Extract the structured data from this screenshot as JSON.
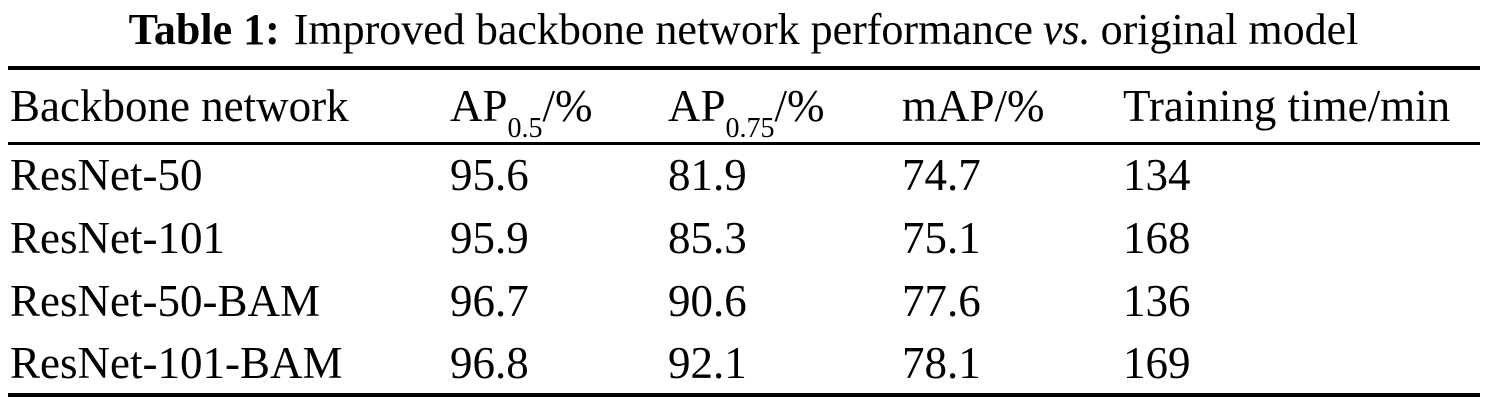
{
  "title": {
    "prefix": "Table 1:",
    "body": "Improved backbone network performance",
    "vs": "vs.",
    "suffix": "original model"
  },
  "table": {
    "headers": [
      {
        "main": "Backbone network",
        "sub": "",
        "suffix": ""
      },
      {
        "main": "AP",
        "sub": "0.5",
        "suffix": "/%"
      },
      {
        "main": "AP",
        "sub": "0.75",
        "suffix": "/%"
      },
      {
        "main": "mAP/%",
        "sub": "",
        "suffix": ""
      },
      {
        "main": "Training time/min",
        "sub": "",
        "suffix": ""
      }
    ],
    "rows": [
      {
        "backbone": "ResNet-50",
        "ap50": "95.6",
        "ap75": "81.9",
        "map": "74.7",
        "time": "134"
      },
      {
        "backbone": "ResNet-101",
        "ap50": "95.9",
        "ap75": "85.3",
        "map": "75.1",
        "time": "168"
      },
      {
        "backbone": "ResNet-50-BAM",
        "ap50": "96.7",
        "ap75": "90.6",
        "map": "77.6",
        "time": "136"
      },
      {
        "backbone": "ResNet-101-BAM",
        "ap50": "96.8",
        "ap75": "92.1",
        "map": "78.1",
        "time": "169"
      }
    ]
  },
  "colors": {
    "text": "#000000",
    "background": "#ffffff",
    "rule": "#000000"
  },
  "chart_data": {
    "type": "table",
    "title": "Table 1: Improved backbone network performance vs. original model",
    "columns": [
      "Backbone network",
      "AP_0.5/%",
      "AP_0.75/%",
      "mAP/%",
      "Training time/min"
    ],
    "rows": [
      [
        "ResNet-50",
        95.6,
        81.9,
        74.7,
        134
      ],
      [
        "ResNet-101",
        95.9,
        85.3,
        75.1,
        168
      ],
      [
        "ResNet-50-BAM",
        96.7,
        90.6,
        77.6,
        136
      ],
      [
        "ResNet-101-BAM",
        96.8,
        92.1,
        78.1,
        169
      ]
    ]
  }
}
